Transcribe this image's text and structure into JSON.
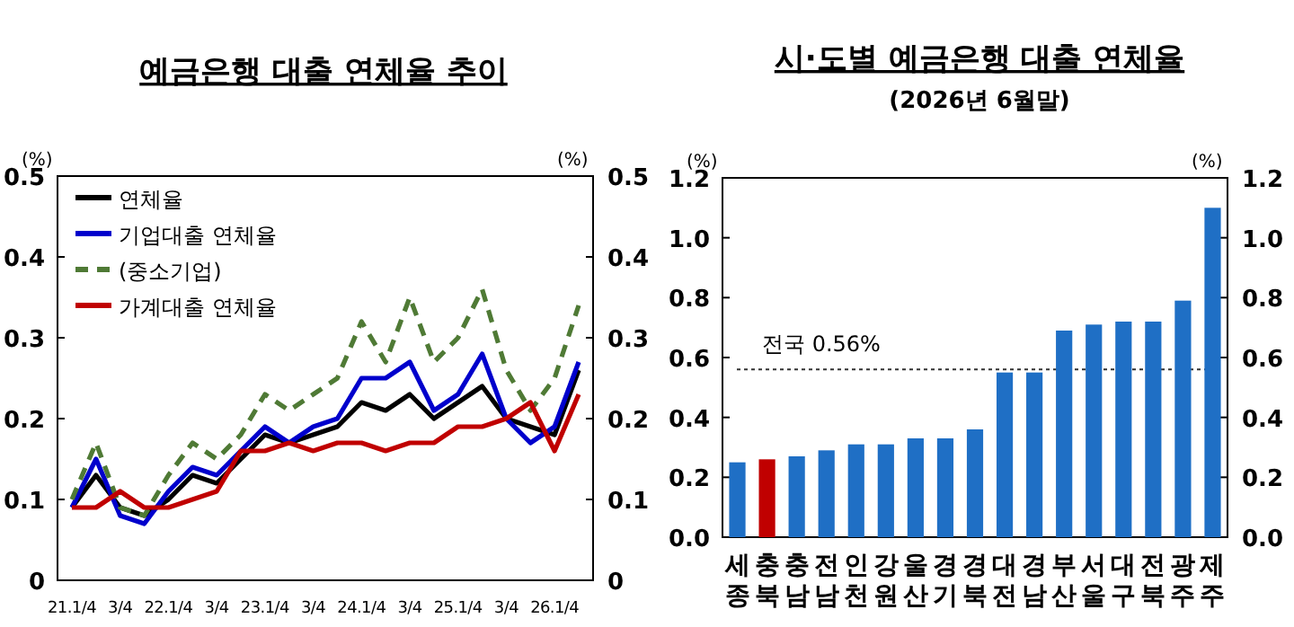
{
  "chart_data": [
    {
      "type": "line",
      "title": "예금은행 대출 연체율 추이",
      "ylabel": "(%)",
      "y2label": "(%)",
      "categories": [
        "21.1/4",
        null,
        "3/4",
        null,
        "22.1/4",
        null,
        "3/4",
        null,
        "23.1/4",
        null,
        "3/4",
        null,
        "24.1/4",
        null,
        "3/4",
        null,
        "25.1/4",
        null,
        "3/4",
        null,
        "26.1/4",
        null
      ],
      "series": [
        {
          "name": "연체율",
          "color": "#000000",
          "values": [
            0.09,
            0.13,
            0.09,
            0.08,
            0.1,
            0.13,
            0.12,
            0.15,
            0.18,
            0.17,
            0.18,
            0.19,
            0.22,
            0.21,
            0.23,
            0.2,
            0.22,
            0.24,
            0.2,
            0.19,
            0.18,
            0.26
          ]
        },
        {
          "name": "기업대출 연체율",
          "color": "#0000cc",
          "values": [
            0.09,
            0.15,
            0.08,
            0.07,
            0.11,
            0.14,
            0.13,
            0.16,
            0.19,
            0.17,
            0.19,
            0.2,
            0.25,
            0.25,
            0.27,
            0.21,
            0.23,
            0.28,
            0.2,
            0.17,
            0.19,
            0.27
          ]
        },
        {
          "name": "(중소기업)",
          "color": "#4f7a35",
          "line_style": "dashed",
          "values": [
            0.1,
            0.17,
            0.09,
            0.08,
            0.13,
            0.17,
            0.15,
            0.18,
            0.23,
            0.21,
            0.23,
            0.25,
            0.32,
            0.27,
            0.35,
            0.27,
            0.3,
            0.36,
            0.26,
            0.21,
            0.25,
            0.34
          ]
        },
        {
          "name": "가계대출 연체율",
          "color": "#c00000",
          "values": [
            0.09,
            0.09,
            0.11,
            0.09,
            0.09,
            0.1,
            0.11,
            0.16,
            0.16,
            0.17,
            0.16,
            0.17,
            0.17,
            0.16,
            0.17,
            0.17,
            0.19,
            0.19,
            0.2,
            0.22,
            0.16,
            0.23
          ]
        }
      ],
      "ylim": [
        0,
        0.5
      ],
      "yticks": [
        0,
        0.1,
        0.2,
        0.3,
        0.4,
        0.5
      ],
      "y2lim": [
        0,
        0.5
      ],
      "y2ticks": [
        0,
        0.1,
        0.2,
        0.3,
        0.4,
        0.5
      ],
      "legend": "top left",
      "grid": false
    },
    {
      "type": "bar",
      "title": "시·도별 예금은행 대출 연체율",
      "subtitle": "(2026년 6월말)",
      "ylabel": "(%)",
      "y2label": "(%)",
      "categories": [
        "세종",
        "충북",
        "충남",
        "전남",
        "인천",
        "강원",
        "울산",
        "경기",
        "경북",
        "대전",
        "경남",
        "부산",
        "서울",
        "대구",
        "전북",
        "광주",
        "제주"
      ],
      "values": [
        0.25,
        0.26,
        0.27,
        0.29,
        0.31,
        0.31,
        0.33,
        0.33,
        0.36,
        0.55,
        0.55,
        0.69,
        0.71,
        0.72,
        0.72,
        0.79,
        1.1
      ],
      "colors": [
        "#1f6fc5",
        "#c00000",
        "#1f6fc5",
        "#1f6fc5",
        "#1f6fc5",
        "#1f6fc5",
        "#1f6fc5",
        "#1f6fc5",
        "#1f6fc5",
        "#1f6fc5",
        "#1f6fc5",
        "#1f6fc5",
        "#1f6fc5",
        "#1f6fc5",
        "#1f6fc5",
        "#1f6fc5",
        "#1f6fc5"
      ],
      "ylim": [
        0,
        1.2
      ],
      "yticks": [
        {
          "value": 0,
          "label": "0.0"
        },
        {
          "value": 0.2,
          "label": "0.2"
        },
        {
          "value": 0.4,
          "label": "0.4"
        },
        {
          "value": 0.6,
          "label": "0.6"
        },
        {
          "value": 0.8,
          "label": "0.8"
        },
        {
          "value": 1.0,
          "label": "1.0"
        },
        {
          "value": 1.2,
          "label": "1.2"
        }
      ],
      "y2lim": [
        0,
        1.2
      ],
      "y2ticks": [
        {
          "value": 0,
          "label": "0.0"
        },
        {
          "value": 0.2,
          "label": "0.2"
        },
        {
          "value": 0.4,
          "label": "0.4"
        },
        {
          "value": 0.6,
          "label": "0.6"
        },
        {
          "value": 0.8,
          "label": "0.8"
        },
        {
          "value": 1.0,
          "label": "1.0"
        },
        {
          "value": 1.2,
          "label": "1.2"
        }
      ],
      "ref_lines": [
        {
          "axis": "y",
          "value": 0.56,
          "label": "전국 0.56%",
          "color": "#333333",
          "line_style": "dotted"
        }
      ],
      "grid": false,
      "legend": false
    }
  ]
}
